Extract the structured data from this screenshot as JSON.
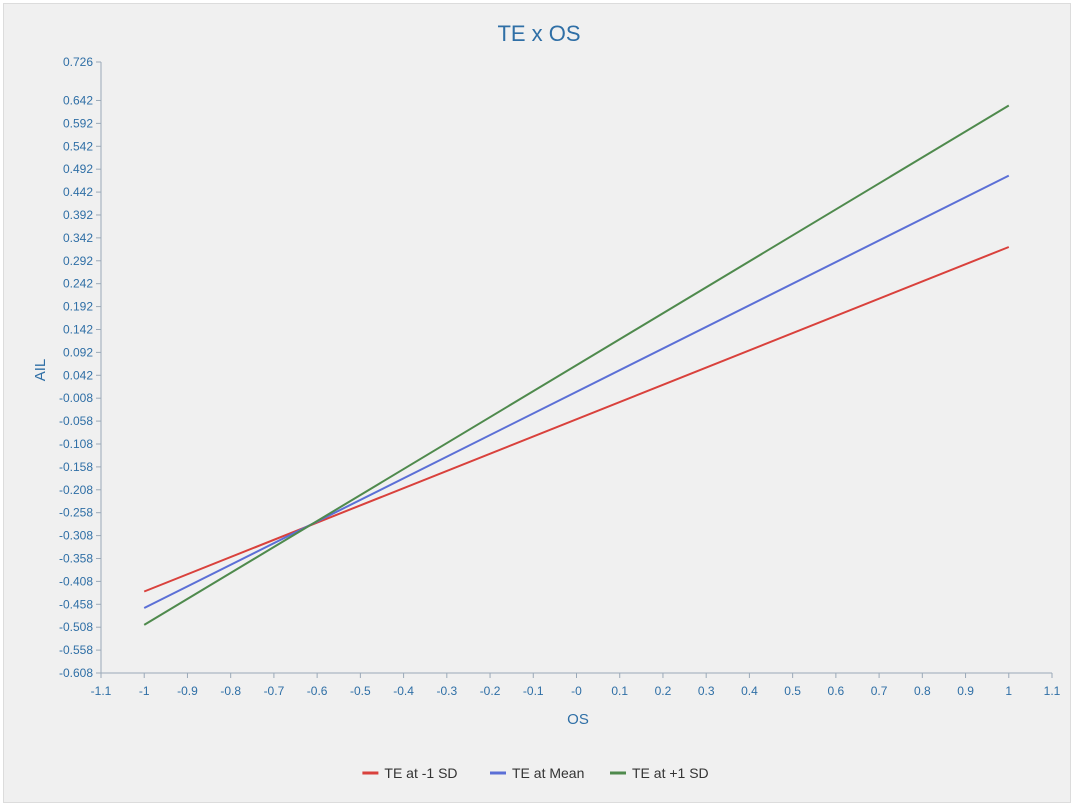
{
  "chart_data": {
    "type": "line",
    "title": "TE x OS",
    "xlabel": "OS",
    "ylabel": "AIL",
    "x_ticks": [
      "-1.1",
      "-1",
      "-0.9",
      "-0.8",
      "-0.7",
      "-0.6",
      "-0.5",
      "-0.4",
      "-0.3",
      "-0.2",
      "-0.1",
      "-0",
      "0.1",
      "0.2",
      "0.3",
      "0.4",
      "0.5",
      "0.6",
      "0.7",
      "0.8",
      "0.9",
      "1",
      "1.1"
    ],
    "y_ticks": [
      "0.726",
      "0.642",
      "0.592",
      "0.542",
      "0.492",
      "0.442",
      "0.392",
      "0.342",
      "0.292",
      "0.242",
      "0.192",
      "0.142",
      "0.092",
      "0.042",
      "-0.008",
      "-0.058",
      "-0.108",
      "-0.158",
      "-0.208",
      "-0.258",
      "-0.308",
      "-0.358",
      "-0.408",
      "-0.458",
      "-0.508",
      "-0.558",
      "-0.608"
    ],
    "xlim": [
      -1.1,
      1.1
    ],
    "ylim": [
      -0.608,
      0.726
    ],
    "grid": false,
    "legend_position": "bottom-center",
    "series": [
      {
        "name": "TE at -1 SD",
        "color": "#d9413c",
        "x": [
          -1,
          1
        ],
        "y": [
          -0.43,
          0.322
        ]
      },
      {
        "name": "TE at Mean",
        "color": "#5b6fd6",
        "x": [
          -1,
          1
        ],
        "y": [
          -0.466,
          0.478
        ]
      },
      {
        "name": "TE at +1 SD",
        "color": "#4f8a4d",
        "x": [
          -1,
          1
        ],
        "y": [
          -0.503,
          0.631
        ]
      }
    ]
  }
}
